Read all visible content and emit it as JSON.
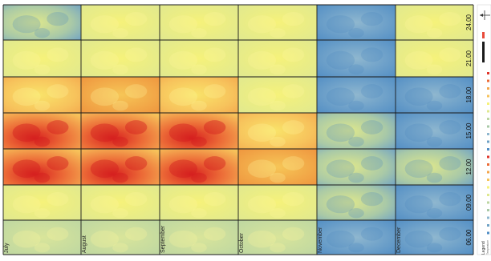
{
  "months": [
    "July",
    "August",
    "September",
    "October",
    "November",
    "December"
  ],
  "hours": [
    "24.00",
    "21.00",
    "18.00",
    "15.00",
    "12.00",
    "09.00",
    "06.00"
  ],
  "legend": {
    "title": "Legend",
    "subtitle": "Temperature"
  },
  "palette": {
    "cool": "#5b97c8",
    "mild": "#e9ec8a",
    "warm": "#f7b65a",
    "hot": "#e0352b",
    "grid": "#1a1a1a"
  },
  "cells": [
    [
      "cool-mild",
      "mild",
      "mild",
      "mild",
      "cool",
      "mild"
    ],
    [
      "mild",
      "mild",
      "mild",
      "mild",
      "cool",
      "mild"
    ],
    [
      "warm",
      "orange",
      "warm",
      "mild",
      "cool",
      "cool"
    ],
    [
      "hot",
      "hot",
      "hot",
      "warm",
      "cool-mild",
      "cool"
    ],
    [
      "hot",
      "hot",
      "hot",
      "orange",
      "cool-mild",
      "cool-mild"
    ],
    [
      "mild",
      "mild",
      "mild",
      "mild",
      "cool-mild",
      "cool"
    ],
    [
      "mild-green",
      "mild-green",
      "mild-green",
      "mild-green",
      "cool",
      "cool"
    ]
  ]
}
